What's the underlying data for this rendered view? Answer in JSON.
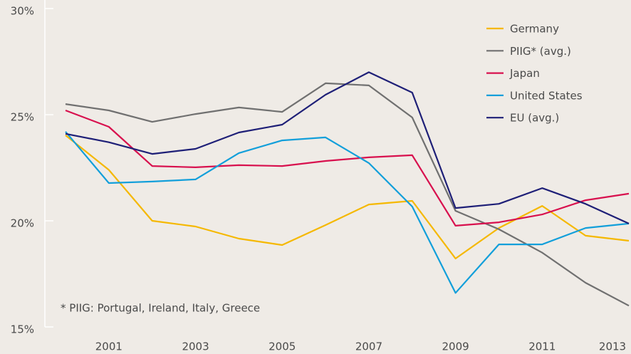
{
  "chart_data": {
    "type": "line",
    "x": [
      2000,
      2001,
      2002,
      2003,
      2004,
      2005,
      2006,
      2007,
      2008,
      2009,
      2010,
      2011,
      2012,
      2013
    ],
    "series": [
      {
        "name": "Germany",
        "color": "#f5b800",
        "values": [
          24.03,
          22.4,
          20.0,
          19.73,
          19.16,
          18.86,
          19.8,
          20.77,
          20.94,
          18.22,
          19.66,
          20.7,
          19.3,
          19.06
        ]
      },
      {
        "name": "PIIG* (avg.)",
        "color": "#707070",
        "values": [
          25.5,
          25.2,
          24.66,
          25.03,
          25.34,
          25.13,
          26.48,
          26.38,
          24.87,
          20.47,
          19.6,
          18.5,
          17.08,
          16.0
        ]
      },
      {
        "name": "Japan",
        "color": "#d8104e",
        "values": [
          25.2,
          24.43,
          22.58,
          22.52,
          22.62,
          22.58,
          22.82,
          22.99,
          23.09,
          19.77,
          19.93,
          20.3,
          20.97,
          21.28
        ]
      },
      {
        "name": "United States",
        "color": "#129fda",
        "values": [
          24.2,
          21.78,
          21.85,
          21.95,
          23.19,
          23.79,
          23.93,
          22.72,
          20.67,
          16.6,
          18.89,
          18.89,
          19.66,
          19.87
        ]
      },
      {
        "name": "EU (avg.)",
        "color": "#1e1f77",
        "values": [
          24.1,
          23.7,
          23.15,
          23.39,
          24.16,
          24.53,
          25.94,
          27.0,
          26.04,
          20.6,
          20.8,
          21.54,
          20.8,
          19.87
        ]
      }
    ],
    "xlim": [
      2000,
      2013
    ],
    "xticks": [
      2001,
      2003,
      2005,
      2007,
      2009,
      2011,
      2013
    ],
    "ylim": [
      15,
      30
    ],
    "yticks": [
      {
        "value": 15,
        "label": "15%"
      },
      {
        "value": 20,
        "label": "20%"
      },
      {
        "value": 25,
        "label": "25%"
      },
      {
        "value": 30,
        "label": "30%"
      }
    ],
    "annotations": [
      "* PIIG: Portugal, Ireland, Italy, Greece"
    ],
    "legend": "top-right"
  }
}
